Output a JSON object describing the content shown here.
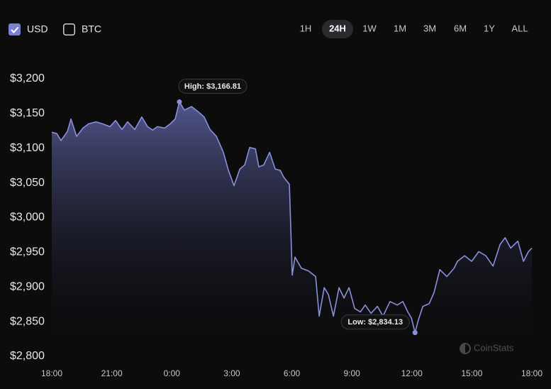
{
  "chart_data": {
    "type": "area",
    "currencies": [
      {
        "label": "USD",
        "checked": true
      },
      {
        "label": "BTC",
        "checked": false
      }
    ],
    "ranges": [
      "1H",
      "24H",
      "1W",
      "1M",
      "3M",
      "6M",
      "1Y",
      "ALL"
    ],
    "active_range": "24H",
    "watermark": "CoinStats",
    "color": "#8a90dc",
    "x": [
      0,
      0.25,
      0.46,
      0.78,
      0.96,
      1.24,
      1.56,
      1.84,
      2.2,
      2.55,
      2.91,
      3.19,
      3.51,
      3.79,
      4.15,
      4.5,
      4.79,
      5.04,
      5.28,
      5.64,
      5.92,
      6.17,
      6.38,
      6.63,
      6.99,
      7.34,
      7.62,
      7.91,
      8.23,
      8.58,
      8.83,
      9.11,
      9.4,
      9.65,
      9.89,
      10.18,
      10.35,
      10.6,
      10.89,
      11.17,
      11.42,
      11.6,
      11.88,
      12.02,
      12.16,
      12.48,
      12.84,
      13.19,
      13.37,
      13.62,
      13.83,
      14.08,
      14.36,
      14.61,
      14.86,
      15.14,
      15.43,
      15.67,
      15.96,
      16.28,
      16.56,
      16.91,
      17.27,
      17.55,
      17.8,
      17.98,
      18.16,
      18.33,
      18.55,
      18.87,
      19.11,
      19.4,
      19.75,
      20.11,
      20.28,
      20.64,
      20.99,
      21.35,
      21.7,
      22.06,
      22.41,
      22.66,
      22.94,
      23.3,
      23.58,
      23.83,
      24.0
    ],
    "values": [
      3123,
      3121,
      3111,
      3124,
      3142,
      3117,
      3129,
      3135,
      3138,
      3135,
      3131,
      3140,
      3127,
      3138,
      3127,
      3145,
      3131,
      3126,
      3131,
      3129,
      3135,
      3142,
      3166.81,
      3155,
      3160,
      3152,
      3145,
      3127,
      3117,
      3094,
      3068,
      3046,
      3070,
      3076,
      3101,
      3099,
      3073,
      3076,
      3094,
      3070,
      3068,
      3058,
      3048,
      2917,
      2943,
      2927,
      2923,
      2915,
      2858,
      2899,
      2889,
      2858,
      2899,
      2884,
      2899,
      2869,
      2864,
      2874,
      2862,
      2872,
      2858,
      2879,
      2874,
      2879,
      2864,
      2855,
      2834.13,
      2853,
      2872,
      2876,
      2892,
      2925,
      2915,
      2927,
      2937,
      2945,
      2937,
      2951,
      2945,
      2930,
      2961,
      2971,
      2956,
      2966,
      2937,
      2951,
      2956
    ],
    "annotations": [
      {
        "label": "High: $3,166.81",
        "x": 6.38,
        "y": 3166.81
      },
      {
        "label": "Low: $2,834.13",
        "x": 18.16,
        "y": 2834.13
      }
    ],
    "xlim": [
      0,
      24
    ],
    "xticks": [
      {
        "value": 0,
        "label": "18:00"
      },
      {
        "value": 3,
        "label": "21:00"
      },
      {
        "value": 6,
        "label": "0:00"
      },
      {
        "value": 9,
        "label": "3:00"
      },
      {
        "value": 12,
        "label": "6:00"
      },
      {
        "value": 15,
        "label": "9:00"
      },
      {
        "value": 18,
        "label": "12:00"
      },
      {
        "value": 21,
        "label": "15:00"
      },
      {
        "value": 24,
        "label": "18:00"
      }
    ],
    "ylim": [
      2800,
      3200
    ],
    "yticks": [
      {
        "value": 2800,
        "label": "$2,800"
      },
      {
        "value": 2850,
        "label": "$2,850"
      },
      {
        "value": 2900,
        "label": "$2,900"
      },
      {
        "value": 2950,
        "label": "$2,950"
      },
      {
        "value": 3000,
        "label": "$3,000"
      },
      {
        "value": 3050,
        "label": "$3,050"
      },
      {
        "value": 3100,
        "label": "$3,100"
      },
      {
        "value": 3150,
        "label": "$3,150"
      },
      {
        "value": 3200,
        "label": "$3,200"
      }
    ]
  }
}
